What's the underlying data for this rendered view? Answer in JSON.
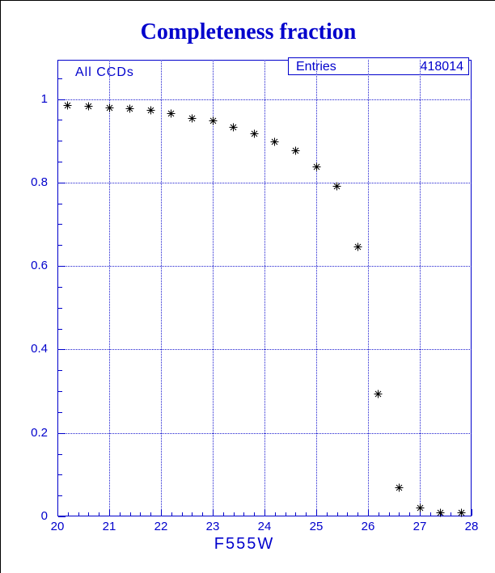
{
  "title": "Completeness fraction",
  "plot": {
    "corner_label": "All CCDs",
    "stats_box": {
      "label": "Entries",
      "value": "418014"
    }
  },
  "colors": {
    "accent": "#0000cc",
    "grid": "#1d1dd0",
    "marker": "#000000",
    "background": "#ffffff",
    "window_border": "#000000"
  },
  "chart_data": {
    "type": "scatter",
    "title": "Completeness fraction",
    "xlabel": "F555W",
    "ylabel": "",
    "xlim": [
      20,
      28
    ],
    "ylim": [
      0,
      1.09
    ],
    "x_major_ticks": [
      20,
      21,
      22,
      23,
      24,
      25,
      26,
      27,
      28
    ],
    "y_major_ticks": [
      0,
      0.2,
      0.4,
      0.6,
      0.8,
      1
    ],
    "x_minor_step": 0.2,
    "y_minor_step": 0.05,
    "grid": "dotted",
    "legend_position": "none",
    "marker": "asterisk",
    "annotations": [
      "All CCDs"
    ],
    "entries": 418014,
    "series": [
      {
        "name": "All CCDs",
        "points": [
          [
            20.2,
            0.988
          ],
          [
            20.6,
            0.987
          ],
          [
            21.0,
            0.983
          ],
          [
            21.4,
            0.98
          ],
          [
            21.8,
            0.976
          ],
          [
            22.2,
            0.969
          ],
          [
            22.6,
            0.958
          ],
          [
            23.0,
            0.952
          ],
          [
            23.4,
            0.936
          ],
          [
            23.8,
            0.921
          ],
          [
            24.2,
            0.901
          ],
          [
            24.6,
            0.879
          ],
          [
            25.0,
            0.842
          ],
          [
            25.4,
            0.795
          ],
          [
            25.8,
            0.649
          ],
          [
            26.2,
            0.297
          ],
          [
            26.6,
            0.073
          ],
          [
            27.0,
            0.025
          ],
          [
            27.4,
            0.013
          ],
          [
            27.8,
            0.012
          ]
        ]
      }
    ]
  }
}
